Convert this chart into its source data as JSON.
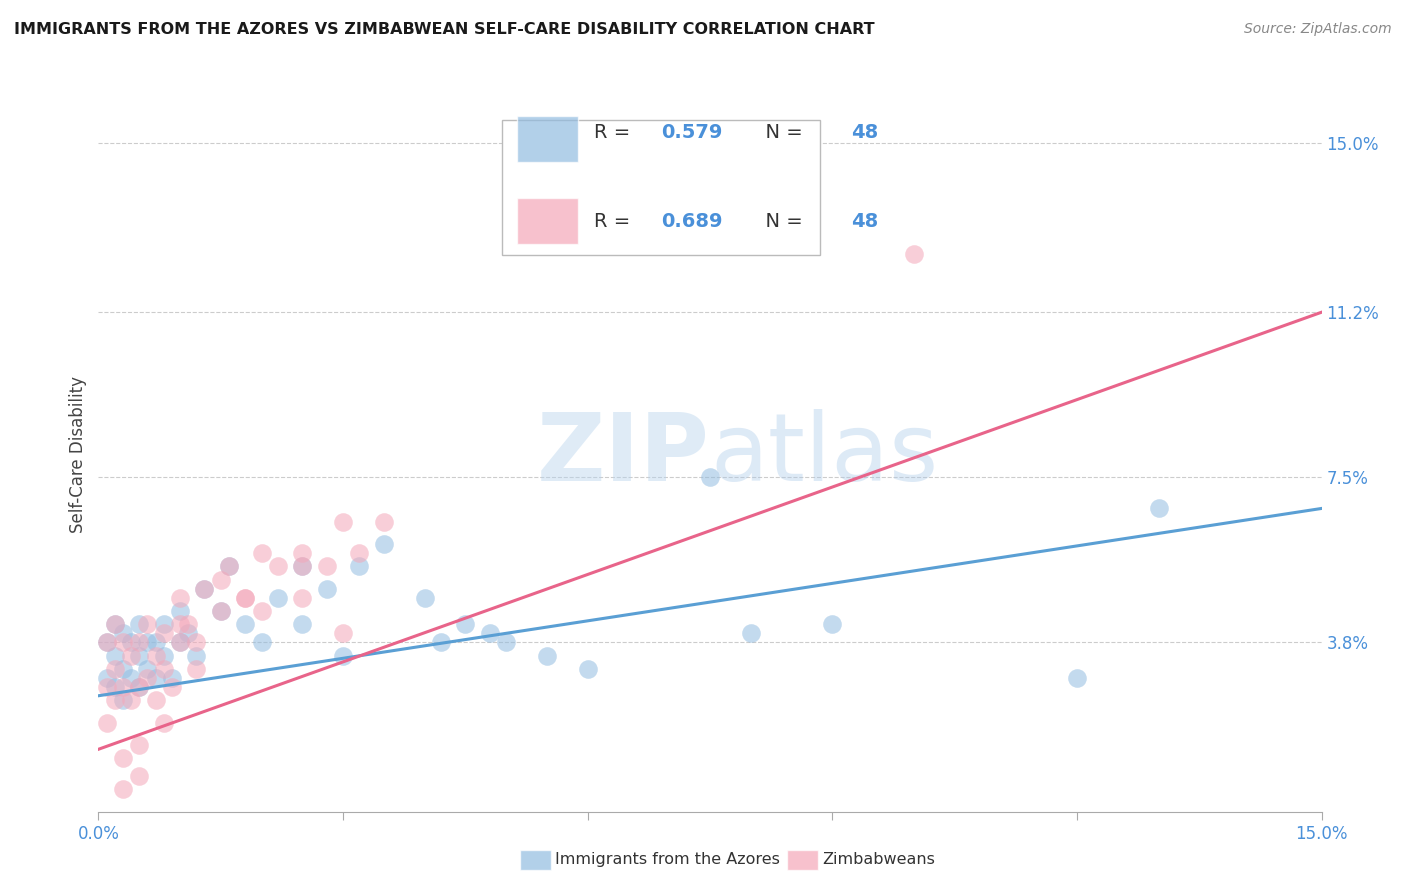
{
  "title": "IMMIGRANTS FROM THE AZORES VS ZIMBABWEAN SELF-CARE DISABILITY CORRELATION CHART",
  "source": "Source: ZipAtlas.com",
  "ylabel": "Self-Care Disability",
  "xlim": [
    0.0,
    0.15
  ],
  "ylim": [
    0.0,
    0.16
  ],
  "y_tick_labels_right": [
    "15.0%",
    "11.2%",
    "7.5%",
    "3.8%"
  ],
  "y_tick_vals_right": [
    0.15,
    0.112,
    0.075,
    0.038
  ],
  "legend_labels": [
    "Immigrants from the Azores",
    "Zimbabweans"
  ],
  "blue_color": "#92bce0",
  "pink_color": "#f4a7b9",
  "blue_line_color": "#5a9fd4",
  "pink_line_color": "#e8648a",
  "blue_text_color": "#4a90d9",
  "watermark_zip": "ZIP",
  "watermark_atlas": "atlas",
  "blue_line_x": [
    0.0,
    0.15
  ],
  "blue_line_y": [
    0.026,
    0.068
  ],
  "pink_line_x": [
    0.0,
    0.15
  ],
  "pink_line_y": [
    0.014,
    0.112
  ],
  "blue_x": [
    0.001,
    0.001,
    0.002,
    0.002,
    0.002,
    0.003,
    0.003,
    0.003,
    0.004,
    0.004,
    0.005,
    0.005,
    0.005,
    0.006,
    0.006,
    0.007,
    0.007,
    0.008,
    0.008,
    0.009,
    0.01,
    0.01,
    0.011,
    0.012,
    0.013,
    0.015,
    0.016,
    0.018,
    0.02,
    0.022,
    0.025,
    0.025,
    0.028,
    0.03,
    0.032,
    0.035,
    0.04,
    0.042,
    0.045,
    0.048,
    0.05,
    0.055,
    0.06,
    0.075,
    0.08,
    0.09,
    0.12,
    0.13
  ],
  "blue_y": [
    0.03,
    0.038,
    0.028,
    0.035,
    0.042,
    0.025,
    0.032,
    0.04,
    0.03,
    0.038,
    0.028,
    0.035,
    0.042,
    0.032,
    0.038,
    0.03,
    0.038,
    0.035,
    0.042,
    0.03,
    0.038,
    0.045,
    0.04,
    0.035,
    0.05,
    0.045,
    0.055,
    0.042,
    0.038,
    0.048,
    0.042,
    0.055,
    0.05,
    0.035,
    0.055,
    0.06,
    0.048,
    0.038,
    0.042,
    0.04,
    0.038,
    0.035,
    0.032,
    0.075,
    0.04,
    0.042,
    0.03,
    0.068
  ],
  "pink_x": [
    0.001,
    0.001,
    0.001,
    0.002,
    0.002,
    0.002,
    0.003,
    0.003,
    0.004,
    0.004,
    0.005,
    0.005,
    0.005,
    0.006,
    0.006,
    0.007,
    0.007,
    0.008,
    0.008,
    0.009,
    0.01,
    0.01,
    0.011,
    0.012,
    0.013,
    0.015,
    0.016,
    0.018,
    0.02,
    0.022,
    0.025,
    0.025,
    0.028,
    0.03,
    0.032,
    0.035,
    0.005,
    0.003,
    0.008,
    0.01,
    0.012,
    0.015,
    0.018,
    0.02,
    0.025,
    0.03,
    0.1,
    0.003
  ],
  "pink_y": [
    0.02,
    0.028,
    0.038,
    0.025,
    0.032,
    0.042,
    0.028,
    0.038,
    0.025,
    0.035,
    0.015,
    0.028,
    0.038,
    0.03,
    0.042,
    0.025,
    0.035,
    0.032,
    0.04,
    0.028,
    0.038,
    0.048,
    0.042,
    0.038,
    0.05,
    0.045,
    0.055,
    0.048,
    0.045,
    0.055,
    0.048,
    0.058,
    0.055,
    0.04,
    0.058,
    0.065,
    0.008,
    0.012,
    0.02,
    0.042,
    0.032,
    0.052,
    0.048,
    0.058,
    0.055,
    0.065,
    0.125,
    0.005
  ]
}
